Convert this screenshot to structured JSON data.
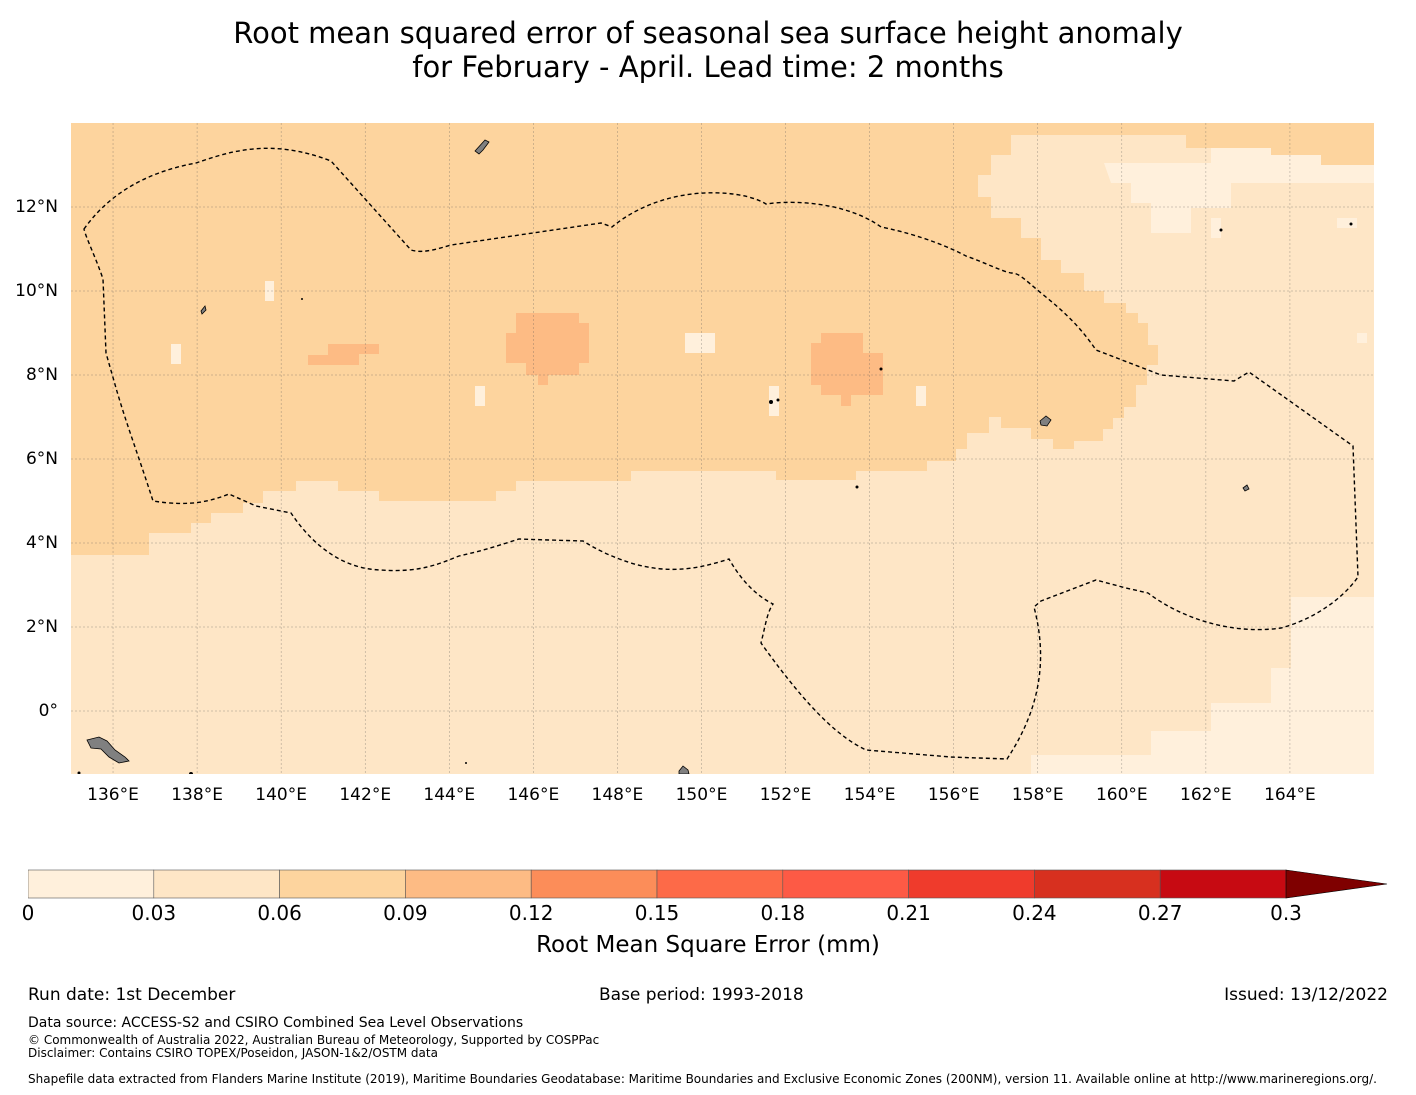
{
  "title": {
    "line1": "Root mean squared error of seasonal sea surface height anomaly",
    "line2": "for February - April. Lead time: 2 months"
  },
  "map": {
    "lon_labels": [
      "136°E",
      "138°E",
      "140°E",
      "142°E",
      "144°E",
      "146°E",
      "148°E",
      "150°E",
      "152°E",
      "154°E",
      "156°E",
      "158°E",
      "160°E",
      "162°E",
      "164°E"
    ],
    "lon_values": [
      136,
      138,
      140,
      142,
      144,
      146,
      148,
      150,
      152,
      154,
      156,
      158,
      160,
      162,
      164
    ],
    "lat_labels": [
      "12°N",
      "10°N",
      "8°N",
      "6°N",
      "4°N",
      "2°N",
      "0°"
    ],
    "lat_values": [
      12,
      10,
      8,
      6,
      4,
      2,
      0
    ],
    "lon_range": [
      135.0,
      166.0
    ],
    "lat_range": [
      -1.5,
      14.0
    ],
    "gridlines": "dashed",
    "field_colors": {
      "band_0_03": "#fff0dc",
      "band_03_06": "#fee6c6",
      "band_06_09": "#fdd49e",
      "band_09_12": "#fdbb84"
    },
    "eez_boundary": "dashed black line (Exclusive Economic Zone)"
  },
  "colorbar": {
    "title": "Root Mean Square Error (mm)",
    "ticks": [
      "0",
      "0.03",
      "0.06",
      "0.09",
      "0.12",
      "0.15",
      "0.18",
      "0.21",
      "0.24",
      "0.27",
      "0.3"
    ],
    "tick_values": [
      0,
      0.03,
      0.06,
      0.09,
      0.12,
      0.15,
      0.18,
      0.21,
      0.24,
      0.27,
      0.3
    ],
    "colors": [
      "#fff0dc",
      "#fee6c6",
      "#fdd49e",
      "#fdbb84",
      "#fc8d59",
      "#fd6a48",
      "#fd5a45",
      "#ef3b2c",
      "#d7301f",
      "#c70a12",
      "#b30000"
    ],
    "extend_color": "#7f0000",
    "extend": "max"
  },
  "footer": {
    "run_date": "Run date: 1st December",
    "base_period": "Base period: 1993-2018",
    "issued": "Issued: 13/12/2022",
    "data_source": "Data source: ACCESS-S2 and CSIRO Combined Sea Level Observations",
    "copyright": "© Commonwealth of Australia 2022, Australian Bureau of Meteorology, Supported by COSPPac",
    "disclaimer": "Disclaimer: Contains CSIRO TOPEX/Poseidon, JASON-1&2/OSTM data",
    "shapefile": "Shapefile data extracted from Flanders Marine Institute (2019), Maritime Boundaries Geodatabase: Maritime Boundaries and Exclusive Economic Zones (200NM), version 11. Available online at http://www.marineregions.org/."
  }
}
